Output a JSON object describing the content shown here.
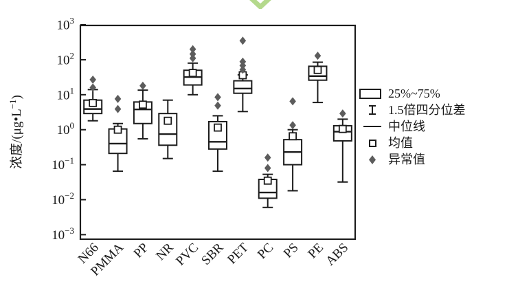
{
  "decoration": {
    "scroll_chevron_color": "#b4d98c"
  },
  "chart_data": {
    "type": "box",
    "title": "",
    "y_scale": "log10",
    "ylim": [
      0.001,
      1000
    ],
    "ylabel": {
      "prefix": "浓度/(μg•L",
      "superscript": "−1",
      "suffix": ")"
    },
    "y_ticks": [
      {
        "base": "10",
        "exp": "3"
      },
      {
        "base": "10",
        "exp": "2"
      },
      {
        "base": "10",
        "exp": "1"
      },
      {
        "base": "10",
        "exp": "0"
      },
      {
        "base": "10",
        "exp": "−1"
      },
      {
        "base": "10",
        "exp": "−2"
      },
      {
        "base": "10",
        "exp": "−3"
      }
    ],
    "y_tick_exponents": [
      3,
      2,
      1,
      0,
      -1,
      -2,
      -3
    ],
    "categories": [
      "N66",
      "PMMA",
      "PP",
      "NR",
      "PVC",
      "SBR",
      "PET",
      "PC",
      "PS",
      "PE",
      "ABS"
    ],
    "unit": "μg·L−1",
    "boxes": [
      {
        "label": "N66",
        "whisker_low": 1.8,
        "q1": 2.9,
        "median": 3.9,
        "q3": 7,
        "whisker_high": 14,
        "mean": 5.8,
        "outliers": [
          16,
          27
        ]
      },
      {
        "label": "PMMA",
        "whisker_low": 0.065,
        "q1": 0.21,
        "median": 0.4,
        "q3": 1.05,
        "whisker_high": 1.5,
        "mean": 1.0,
        "outliers": [
          3.9,
          7.6
        ]
      },
      {
        "label": "PP",
        "whisker_low": 0.55,
        "q1": 1.5,
        "median": 3.8,
        "q3": 6.2,
        "whisker_high": 13.5,
        "mean": 5.2,
        "outliers": [
          18
        ]
      },
      {
        "label": "NR",
        "whisker_low": 0.15,
        "q1": 0.36,
        "median": 0.75,
        "q3": 2.9,
        "whisker_high": 7,
        "mean": 1.8,
        "outliers": []
      },
      {
        "label": "PVC",
        "whisker_low": 10,
        "q1": 19,
        "median": 32,
        "q3": 50,
        "whisker_high": 80,
        "mean": 42,
        "outliers": [
          110,
          145,
          200
        ]
      },
      {
        "label": "SBR",
        "whisker_low": 0.065,
        "q1": 0.28,
        "median": 0.45,
        "q3": 1.7,
        "whisker_high": 2.5,
        "mean": 1.15,
        "outliers": [
          4.9,
          8.5
        ]
      },
      {
        "label": "PET",
        "whisker_low": 3.3,
        "q1": 11,
        "median": 15,
        "q3": 25,
        "whisker_high": 37,
        "mean": 36,
        "outliers": [
          52,
          68,
          88,
          350
        ]
      },
      {
        "label": "PC",
        "whisker_low": 0.006,
        "q1": 0.011,
        "median": 0.016,
        "q3": 0.038,
        "whisker_high": 0.053,
        "mean": 0.035,
        "outliers": [
          0.08,
          0.16
        ]
      },
      {
        "label": "PS",
        "whisker_low": 0.018,
        "q1": 0.1,
        "median": 0.23,
        "q3": 0.52,
        "whisker_high": 1.0,
        "mean": 0.65,
        "outliers": [
          1.35,
          6.5
        ]
      },
      {
        "label": "PE",
        "whisker_low": 6,
        "q1": 26,
        "median": 34,
        "q3": 65,
        "whisker_high": 85,
        "mean": 51,
        "outliers": [
          130
        ]
      },
      {
        "label": "ABS",
        "whisker_low": 0.032,
        "q1": 0.48,
        "median": 0.88,
        "q3": 1.3,
        "whisker_high": 2.0,
        "mean": 1.05,
        "outliers": [
          2.9
        ]
      }
    ],
    "legend": {
      "position": "right",
      "items": [
        {
          "symbol": "box",
          "label": "25%~75%"
        },
        {
          "symbol": "whisker-iqr",
          "label": "1.5倍四分位差"
        },
        {
          "symbol": "median-line",
          "label": "中位线"
        },
        {
          "symbol": "mean-square",
          "label": "均值"
        },
        {
          "symbol": "outlier-diamond",
          "label": "异常值"
        }
      ]
    },
    "colors": {
      "line": "#1c1c1c",
      "box_fill": "#ffffff",
      "outlier_fill": "#5c5c5c"
    },
    "grid": false
  }
}
